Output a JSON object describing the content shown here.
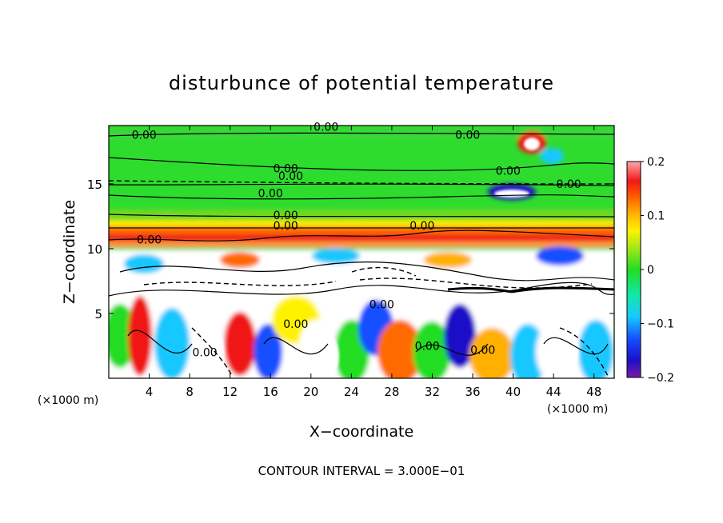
{
  "chart_data": {
    "type": "heatmap",
    "title": "disturbunce of potential temperature",
    "xlabel": "X−coordinate",
    "ylabel": "Z−coordinate",
    "x_unit_left": "(×1000 m)",
    "x_unit_right": "(×1000 m)",
    "xlim": [
      0,
      50
    ],
    "ylim": [
      0,
      19.5
    ],
    "x_ticks": [
      4,
      8,
      12,
      16,
      20,
      24,
      28,
      32,
      36,
      40,
      44,
      48
    ],
    "y_ticks": [
      5,
      10,
      15
    ],
    "colorbar": {
      "range": [
        -0.2,
        0.2
      ],
      "tick_values": [
        0.2,
        0.1,
        0,
        -0.1,
        -0.2
      ],
      "tick_labels": [
        "0.2",
        "0.1",
        "0",
        "−0.1",
        "−0.2"
      ]
    },
    "contour_labels": [
      {
        "text": "0.00",
        "x": 3.5,
        "z": 18.8
      },
      {
        "text": "0.00",
        "x": 21.5,
        "z": 19.4
      },
      {
        "text": "0.00",
        "x": 35.5,
        "z": 18.8
      },
      {
        "text": "0.00",
        "x": 17.5,
        "z": 16.2
      },
      {
        "text": "0.00",
        "x": 18.0,
        "z": 15.6
      },
      {
        "text": "0.00",
        "x": 39.5,
        "z": 16.0
      },
      {
        "text": "0.00",
        "x": 45.5,
        "z": 15.0
      },
      {
        "text": "0.00",
        "x": 16.0,
        "z": 14.3
      },
      {
        "text": "0.00",
        "x": 17.5,
        "z": 12.6
      },
      {
        "text": "0.00",
        "x": 17.5,
        "z": 11.8
      },
      {
        "text": "0.00",
        "x": 31.0,
        "z": 11.8
      },
      {
        "text": "0.00",
        "x": 4.0,
        "z": 10.7
      },
      {
        "text": "0.00",
        "x": 27.0,
        "z": 5.7
      },
      {
        "text": "0.00",
        "x": 18.5,
        "z": 4.2
      },
      {
        "text": "0.00",
        "x": 9.5,
        "z": 2.0
      },
      {
        "text": "0.00",
        "x": 31.5,
        "z": 2.5
      },
      {
        "text": "0.00",
        "x": 37.0,
        "z": 2.2
      }
    ],
    "footer": "CONTOUR INTERVAL = 3.000E−01"
  }
}
